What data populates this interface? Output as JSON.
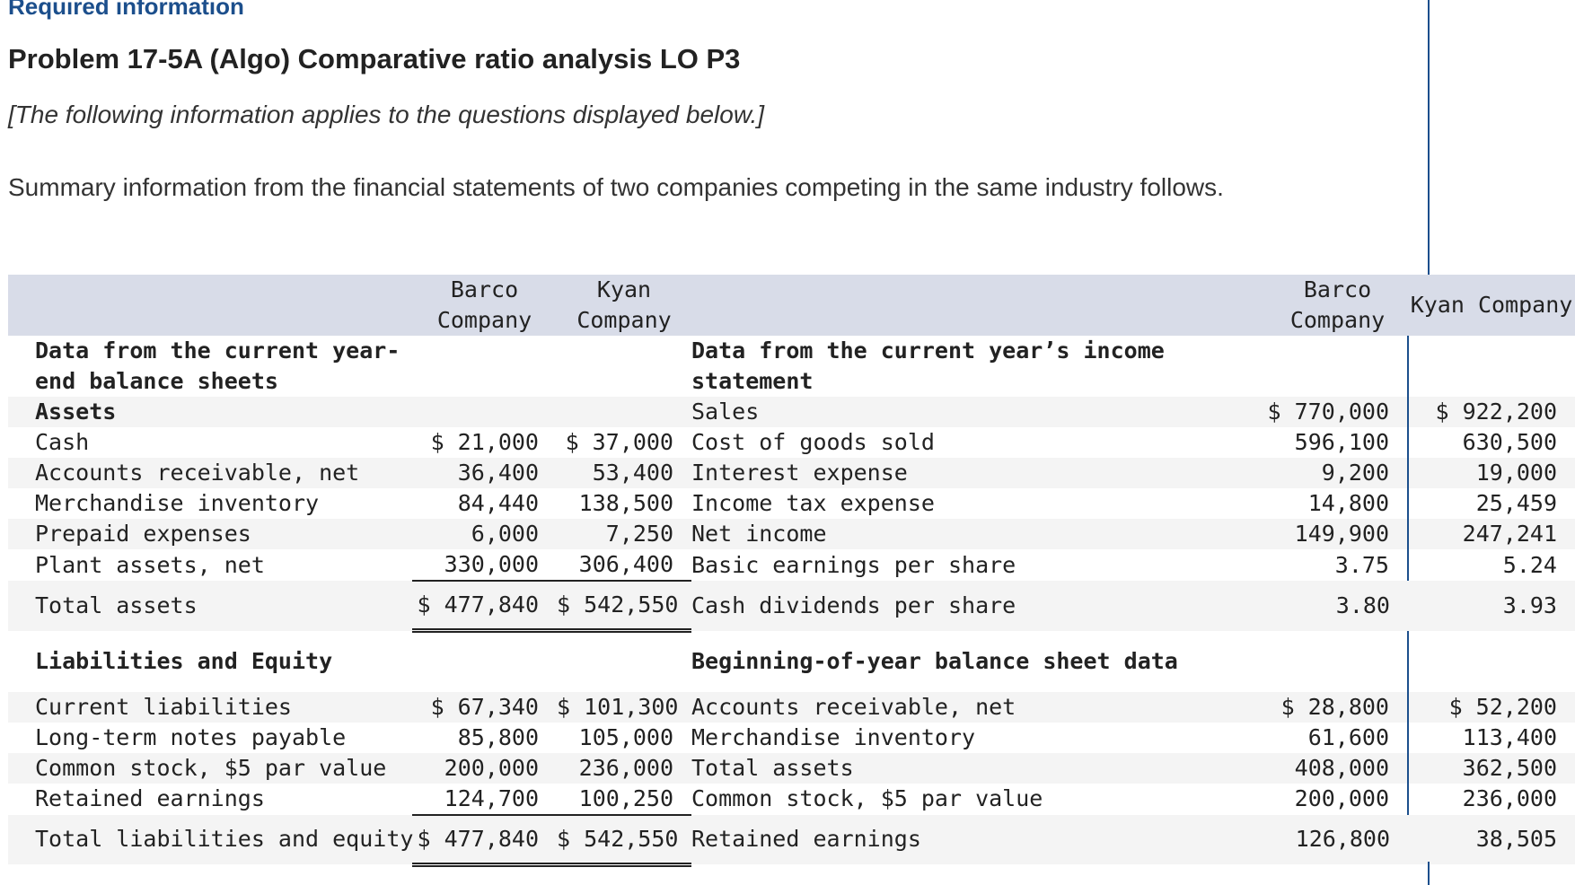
{
  "header": {
    "required": "Required information",
    "title": "Problem 17-5A (Algo) Comparative ratio analysis LO P3",
    "subtitle": "[The following information applies to the questions displayed below.]",
    "intro": "Summary information from the financial statements of two companies competing in the same industry follows."
  },
  "table": {
    "col_barco": "Barco Company",
    "col_kyan": "Kyan Company",
    "left_section1": "Data from the current year-end balance sheets",
    "assets_heading": "Assets",
    "right_section1": "Data from the current year’s income statement",
    "rows1": [
      {
        "l_label": "Cash",
        "l_b": "$ 21,000",
        "l_k": "$ 37,000",
        "r_label": "Sales",
        "r_b": "$ 770,000",
        "r_k": "$ 922,200"
      },
      {
        "l_label": "Accounts receivable, net",
        "l_b": "36,400",
        "l_k": "53,400",
        "r_label": "Cost of goods sold",
        "r_b": "596,100",
        "r_k": "630,500"
      },
      {
        "l_label": "Merchandise inventory",
        "l_b": "84,440",
        "l_k": "138,500",
        "r_label": "Interest expense",
        "r_b": "9,200",
        "r_k": "19,000"
      },
      {
        "l_label": "Prepaid expenses",
        "l_b": "6,000",
        "l_k": "7,250",
        "r_label": "Income tax expense",
        "r_b": "14,800",
        "r_k": "25,459"
      },
      {
        "l_label": "Plant assets, net",
        "l_b": "330,000",
        "l_k": "306,400",
        "r_label": "Net income",
        "r_b": "149,900",
        "r_k": "247,241"
      }
    ],
    "total_assets": {
      "label": "Total assets",
      "b": "$ 477,840",
      "k": "$ 542,550"
    },
    "eps": {
      "label": "Basic earnings per share",
      "b": "3.75",
      "k": "5.24"
    },
    "div": {
      "label": "Cash dividends per share",
      "b": "3.80",
      "k": "3.93"
    },
    "liab_heading": "Liabilities and Equity",
    "right_section2": "Beginning-of-year balance sheet data",
    "rows2": [
      {
        "l_label": "Current liabilities",
        "l_b": "$ 67,340",
        "l_k": "$ 101,300",
        "r_label": "Accounts receivable, net",
        "r_b": "$ 28,800",
        "r_k": "$ 52,200"
      },
      {
        "l_label": "Long-term notes payable",
        "l_b": "85,800",
        "l_k": "105,000",
        "r_label": "Merchandise inventory",
        "r_b": "61,600",
        "r_k": "113,400"
      },
      {
        "l_label": "Common stock, $5 par value",
        "l_b": "200,000",
        "l_k": "236,000",
        "r_label": "Total assets",
        "r_b": "408,000",
        "r_k": "362,500"
      },
      {
        "l_label": "Retained earnings",
        "l_b": "124,700",
        "l_k": "100,250",
        "r_label": "Common stock, $5 par value",
        "r_b": "200,000",
        "r_k": "236,000"
      }
    ],
    "total_le": {
      "label": "Total liabilities and equity",
      "b": "$ 477,840",
      "k": "$ 542,550",
      "r_label": "Retained earnings",
      "r_b": "126,800",
      "r_k": "38,505"
    }
  }
}
